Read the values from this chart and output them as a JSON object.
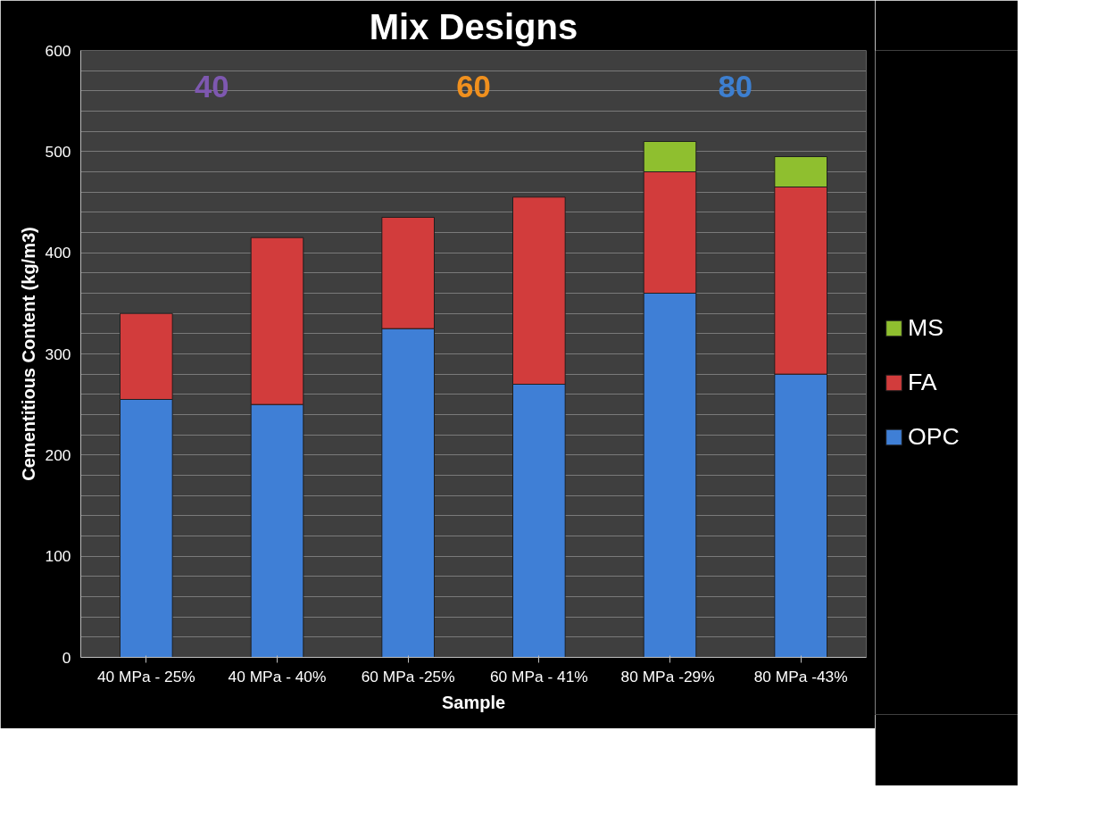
{
  "chart_data": {
    "type": "bar",
    "title": "Mix Designs",
    "xlabel": "Sample",
    "ylabel": "Cementitious Content (kg/m3)",
    "categories": [
      "40 MPa - 25%",
      "40 MPa - 40%",
      "60 MPa -25%",
      "60 MPa - 41%",
      "80 MPa  -29%",
      "80 MPa -43%"
    ],
    "stacked": true,
    "series": [
      {
        "name": "OPC",
        "color": "#3f7fd6",
        "values": [
          255,
          250,
          325,
          270,
          360,
          280
        ]
      },
      {
        "name": "FA",
        "color": "#d23c3c",
        "values": [
          85,
          165,
          110,
          185,
          120,
          185
        ]
      },
      {
        "name": "MS",
        "color": "#8fbf2f",
        "values": [
          null,
          null,
          null,
          null,
          30,
          30
        ]
      }
    ],
    "ylim": [
      0,
      600
    ],
    "yticks": [
      0,
      {
        "value": 20,
        "label": null
      },
      {
        "value": 40,
        "label": null
      },
      {
        "value": 60,
        "label": null
      },
      {
        "value": 80,
        "label": null
      },
      100,
      {
        "value": 120,
        "label": null
      },
      {
        "value": 140,
        "label": null
      },
      {
        "value": 160,
        "label": null
      },
      {
        "value": 180,
        "label": null
      },
      200,
      {
        "value": 220,
        "label": null
      },
      {
        "value": 240,
        "label": null
      },
      {
        "value": 260,
        "label": null
      },
      {
        "value": 280,
        "label": null
      },
      300,
      {
        "value": 320,
        "label": null
      },
      {
        "value": 340,
        "label": null
      },
      {
        "value": 360,
        "label": null
      },
      {
        "value": 380,
        "label": null
      },
      400,
      {
        "value": 420,
        "label": null
      },
      {
        "value": 440,
        "label": null
      },
      {
        "value": 460,
        "label": null
      },
      {
        "value": 480,
        "label": null
      },
      500,
      {
        "value": 520,
        "label": null
      },
      {
        "value": 540,
        "label": null
      },
      {
        "value": 560,
        "label": null
      },
      {
        "value": 580,
        "label": null
      },
      600
    ],
    "grid": "y",
    "legend": "right",
    "annotations": [
      "40",
      "60",
      "80"
    ]
  }
}
